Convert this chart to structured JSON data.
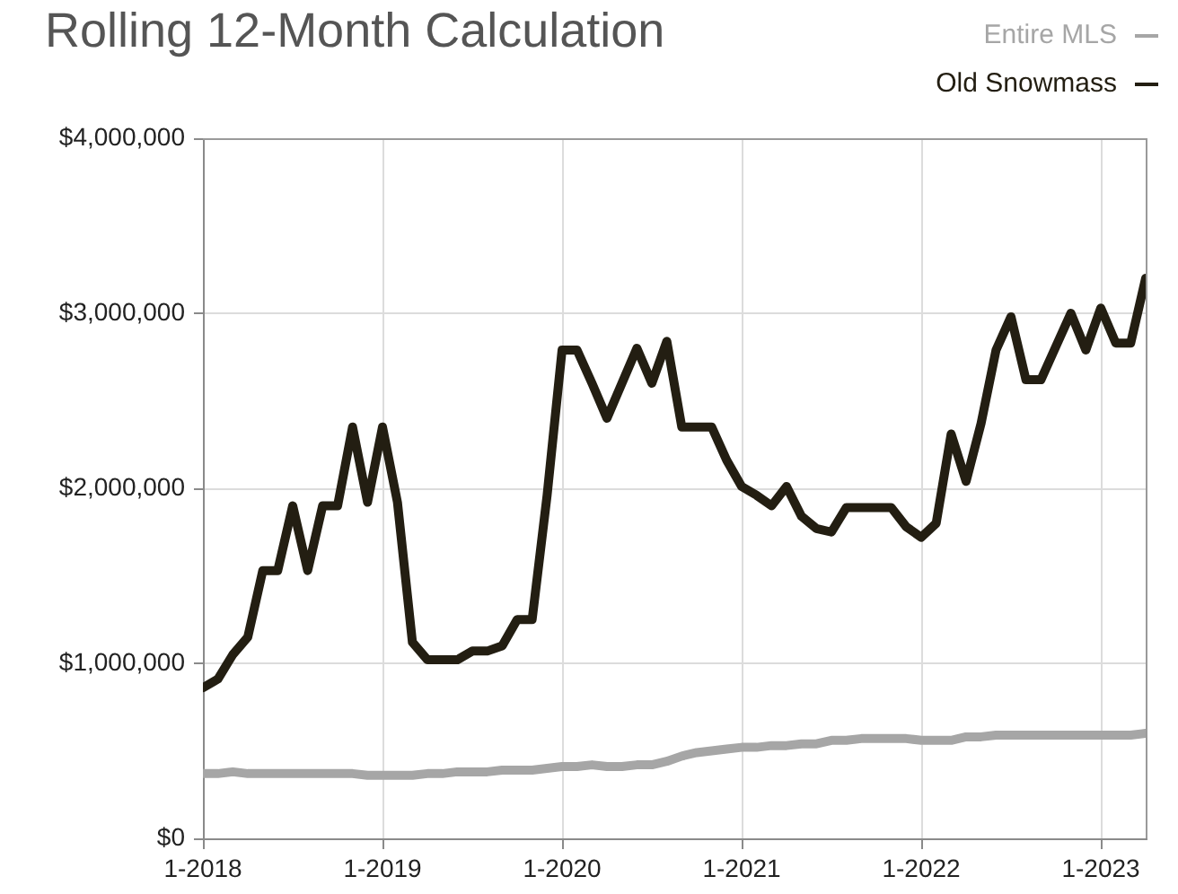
{
  "chart_data": {
    "type": "line",
    "title": "Rolling 12-Month Calculation",
    "x": [
      "2018-01",
      "2018-02",
      "2018-03",
      "2018-04",
      "2018-05",
      "2018-06",
      "2018-07",
      "2018-08",
      "2018-09",
      "2018-10",
      "2018-11",
      "2018-12",
      "2019-01",
      "2019-02",
      "2019-03",
      "2019-04",
      "2019-05",
      "2019-06",
      "2019-07",
      "2019-08",
      "2019-09",
      "2019-10",
      "2019-11",
      "2019-12",
      "2020-01",
      "2020-02",
      "2020-03",
      "2020-04",
      "2020-05",
      "2020-06",
      "2020-07",
      "2020-08",
      "2020-09",
      "2020-10",
      "2020-11",
      "2020-12",
      "2021-01",
      "2021-02",
      "2021-03",
      "2021-04",
      "2021-05",
      "2021-06",
      "2021-07",
      "2021-08",
      "2021-09",
      "2021-10",
      "2021-11",
      "2021-12",
      "2022-01",
      "2022-02",
      "2022-03",
      "2022-04",
      "2022-05",
      "2022-06",
      "2022-07",
      "2022-08",
      "2022-09",
      "2022-10",
      "2022-11",
      "2022-12",
      "2023-01",
      "2023-02",
      "2023-03",
      "2023-04"
    ],
    "series": [
      {
        "name": "Entire MLS",
        "color": "#a6a6a6",
        "values": [
          370000,
          370000,
          380000,
          370000,
          370000,
          370000,
          370000,
          370000,
          370000,
          370000,
          370000,
          360000,
          360000,
          360000,
          360000,
          370000,
          370000,
          380000,
          380000,
          380000,
          390000,
          390000,
          390000,
          400000,
          410000,
          410000,
          420000,
          410000,
          410000,
          420000,
          420000,
          440000,
          470000,
          490000,
          500000,
          510000,
          520000,
          520000,
          530000,
          530000,
          540000,
          540000,
          560000,
          560000,
          570000,
          570000,
          570000,
          570000,
          560000,
          560000,
          560000,
          580000,
          580000,
          590000,
          590000,
          590000,
          590000,
          590000,
          590000,
          590000,
          590000,
          590000,
          590000,
          600000
        ]
      },
      {
        "name": "Old Snowmass",
        "color": "#231e12",
        "values": [
          860000,
          910000,
          1050000,
          1150000,
          1530000,
          1530000,
          1900000,
          1530000,
          1900000,
          1900000,
          2350000,
          1920000,
          2350000,
          1920000,
          1120000,
          1020000,
          1020000,
          1020000,
          1070000,
          1070000,
          1100000,
          1250000,
          1250000,
          1960000,
          2790000,
          2790000,
          2600000,
          2400000,
          2600000,
          2800000,
          2600000,
          2840000,
          2350000,
          2350000,
          2350000,
          2160000,
          2010000,
          1960000,
          1900000,
          2010000,
          1840000,
          1770000,
          1750000,
          1890000,
          1890000,
          1890000,
          1890000,
          1780000,
          1720000,
          1800000,
          2310000,
          2040000,
          2370000,
          2790000,
          2980000,
          2620000,
          2620000,
          2810000,
          3000000,
          2790000,
          3030000,
          2830000,
          2830000,
          3200000
        ]
      }
    ],
    "xlim": [
      "2018-01",
      "2023-04"
    ],
    "xticks": [
      {
        "value": "2018-01",
        "label": "1-2018"
      },
      {
        "value": "2019-01",
        "label": "1-2019"
      },
      {
        "value": "2020-01",
        "label": "1-2020"
      },
      {
        "value": "2021-01",
        "label": "1-2021"
      },
      {
        "value": "2022-01",
        "label": "1-2022"
      },
      {
        "value": "2023-01",
        "label": "1-2023"
      }
    ],
    "ylim": [
      0,
      4000000
    ],
    "yticks": [
      {
        "value": 0,
        "label": "$0"
      },
      {
        "value": 1000000,
        "label": "$1,000,000"
      },
      {
        "value": 2000000,
        "label": "$2,000,000"
      },
      {
        "value": 3000000,
        "label": "$3,000,000"
      },
      {
        "value": 4000000,
        "label": "$4,000,000"
      }
    ],
    "grid": true,
    "legend": "top right",
    "marker": "none",
    "line_style": "solid"
  }
}
